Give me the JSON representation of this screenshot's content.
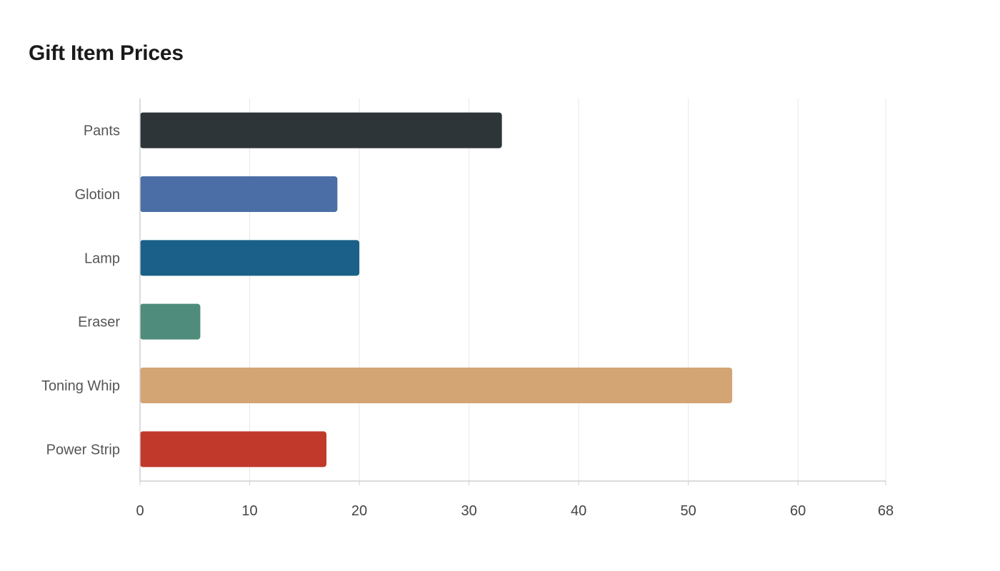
{
  "chart_data": {
    "type": "bar",
    "orientation": "horizontal",
    "title": "Gift Item Prices",
    "xlabel": "",
    "ylabel": "",
    "categories": [
      "Pants",
      "Glotion",
      "Lamp",
      "Eraser",
      "Toning Whip",
      "Power Strip"
    ],
    "values": [
      33,
      18,
      20,
      5.5,
      54,
      17
    ],
    "colors": [
      "#2e3538",
      "#4a6ea5",
      "#1a6088",
      "#4f8c7b",
      "#d3a574",
      "#c0392b"
    ],
    "xlim": [
      0,
      68
    ],
    "xticks": [
      0,
      10,
      20,
      30,
      40,
      50,
      60,
      68
    ],
    "grid": true,
    "legend": "none"
  }
}
